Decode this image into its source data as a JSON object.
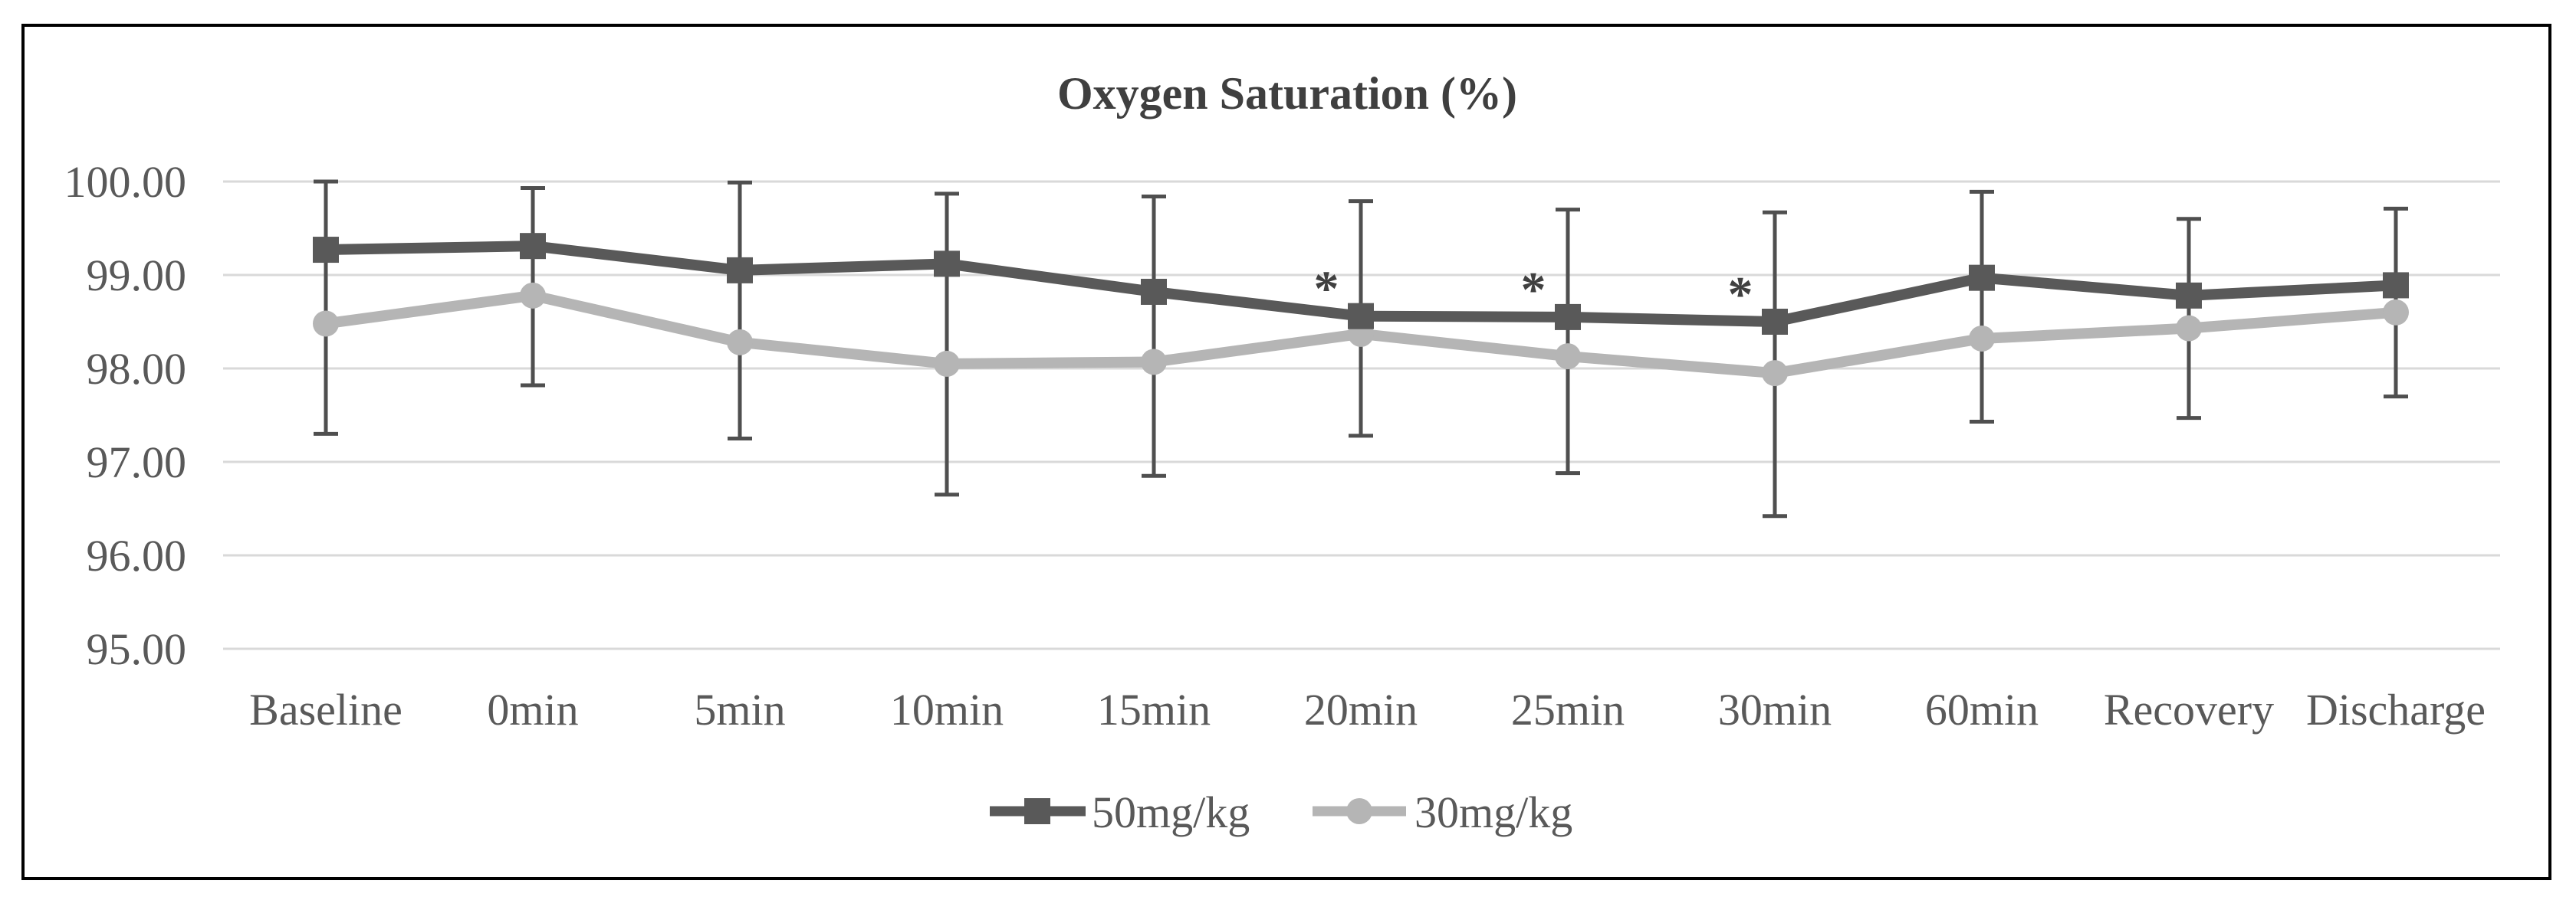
{
  "figure": {
    "background": "#ffffff",
    "border_color": "#000000"
  },
  "colors": {
    "series_50mgkg": "#595959",
    "series_30mgkg": "#b5b5b5",
    "error_bar": "#4f4f4f",
    "gridline": "#d9d9d9",
    "tick_text": "#595959",
    "title_text": "#3f3f3f"
  },
  "chart_data": {
    "type": "line",
    "title": "Oxygen Saturation (%)",
    "categories": [
      "Baseline",
      "0min",
      "5min",
      "10min",
      "15min",
      "20min",
      "25min",
      "30min",
      "60min",
      "Recovery",
      "Discharge"
    ],
    "series": [
      {
        "name": "50mg/kg",
        "marker": "square",
        "color": "#595959",
        "values": [
          99.27,
          99.31,
          99.05,
          99.12,
          98.82,
          98.56,
          98.55,
          98.5,
          98.97,
          98.78,
          98.89
        ],
        "upper_whisker": [
          100.0,
          99.93,
          99.99,
          99.87,
          99.84,
          99.79,
          99.7,
          99.67,
          99.89,
          99.6,
          99.71
        ]
      },
      {
        "name": "30mg/kg",
        "marker": "circle",
        "color": "#b5b5b5",
        "values": [
          98.48,
          98.78,
          98.28,
          98.05,
          98.07,
          98.37,
          98.13,
          97.95,
          98.32,
          98.43,
          98.6
        ],
        "lower_whisker": [
          97.3,
          97.82,
          97.25,
          96.65,
          96.85,
          97.28,
          96.88,
          96.42,
          97.43,
          97.47,
          97.7
        ]
      }
    ],
    "significance": {
      "symbol": "*",
      "categories": [
        "20min",
        "25min",
        "30min"
      ],
      "applies_to_series": "50mg/kg"
    },
    "yticks": [
      100,
      99,
      98,
      97,
      96,
      95
    ],
    "ytick_labels": [
      "100.00",
      "99.00",
      "98.00",
      "97.00",
      "96.00",
      "95.00"
    ],
    "ylim": [
      94.5,
      100.5
    ],
    "grid": "horizontal",
    "legend_position": "bottom"
  }
}
